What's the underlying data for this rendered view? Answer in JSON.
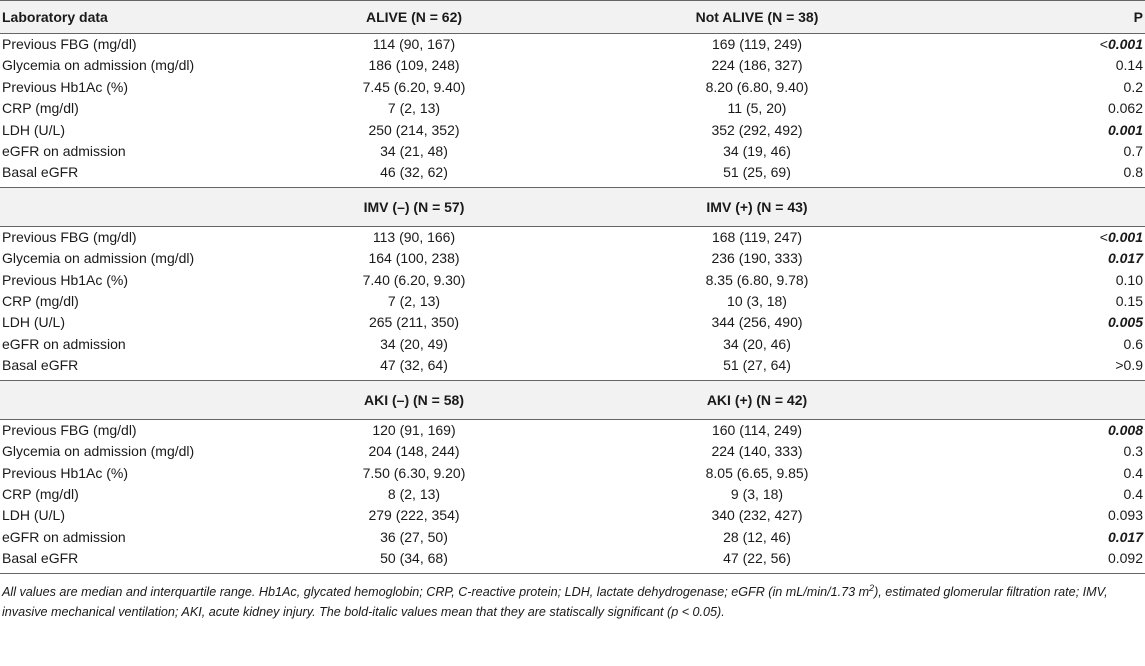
{
  "header": {
    "col1": "Laboratory data",
    "col2": "ALIVE (N = 62)",
    "col3": "Not ALIVE (N = 38)",
    "col4": "P"
  },
  "sections": [
    {
      "group": null,
      "rows": [
        {
          "label": "Previous FBG (mg/dl)",
          "a": "114 (90, 167)",
          "b": "169 (119, 249)",
          "p_prefix": "<",
          "p": "0.001",
          "sig": true
        },
        {
          "label": "Glycemia on admission (mg/dl)",
          "a": "186 (109, 248)",
          "b": "224 (186, 327)",
          "p_prefix": "",
          "p": "0.14",
          "sig": false
        },
        {
          "label": "Previous Hb1Ac (%)",
          "a": "7.45 (6.20, 9.40)",
          "b": "8.20 (6.80, 9.40)",
          "p_prefix": "",
          "p": "0.2",
          "sig": false
        },
        {
          "label": "CRP (mg/dl)",
          "a": "7 (2, 13)",
          "b": "11 (5, 20)",
          "p_prefix": "",
          "p": "0.062",
          "sig": false
        },
        {
          "label": "LDH (U/L)",
          "a": "250 (214, 352)",
          "b": "352 (292, 492)",
          "p_prefix": "",
          "p": "0.001",
          "sig": true
        },
        {
          "label": "eGFR on admission",
          "a": "34 (21, 48)",
          "b": "34 (19, 46)",
          "p_prefix": "",
          "p": "0.7",
          "sig": false
        },
        {
          "label": "Basal eGFR",
          "a": "46 (32, 62)",
          "b": "51 (25, 69)",
          "p_prefix": "",
          "p": "0.8",
          "sig": false
        }
      ]
    },
    {
      "group": {
        "a": "IMV (–) (N = 57)",
        "b": "IMV (+) (N = 43)"
      },
      "rows": [
        {
          "label": "Previous FBG (mg/dl)",
          "a": "113 (90, 166)",
          "b": "168 (119, 247)",
          "p_prefix": "<",
          "p": "0.001",
          "sig": true
        },
        {
          "label": "Glycemia on admission (mg/dl)",
          "a": "164 (100, 238)",
          "b": "236 (190, 333)",
          "p_prefix": "",
          "p": "0.017",
          "sig": true
        },
        {
          "label": "Previous Hb1Ac (%)",
          "a": "7.40 (6.20, 9.30)",
          "b": "8.35 (6.80, 9.78)",
          "p_prefix": "",
          "p": "0.10",
          "sig": false
        },
        {
          "label": "CRP (mg/dl)",
          "a": "7 (2, 13)",
          "b": "10 (3, 18)",
          "p_prefix": "",
          "p": "0.15",
          "sig": false
        },
        {
          "label": "LDH (U/L)",
          "a": "265 (211, 350)",
          "b": "344 (256, 490)",
          "p_prefix": "",
          "p": "0.005",
          "sig": true
        },
        {
          "label": "eGFR on admission",
          "a": "34 (20, 49)",
          "b": "34 (20, 46)",
          "p_prefix": "",
          "p": "0.6",
          "sig": false
        },
        {
          "label": "Basal eGFR",
          "a": "47 (32, 64)",
          "b": "51 (27, 64)",
          "p_prefix": "",
          "p": ">0.9",
          "sig": false
        }
      ]
    },
    {
      "group": {
        "a": "AKI (–) (N = 58)",
        "b": "AKI (+) (N = 42)"
      },
      "rows": [
        {
          "label": "Previous FBG (mg/dl)",
          "a": "120 (91, 169)",
          "b": "160 (114, 249)",
          "p_prefix": "",
          "p": "0.008",
          "sig": true
        },
        {
          "label": "Glycemia on admission (mg/dl)",
          "a": "204 (148, 244)",
          "b": "224 (140, 333)",
          "p_prefix": "",
          "p": "0.3",
          "sig": false
        },
        {
          "label": "Previous Hb1Ac (%)",
          "a": "7.50 (6.30, 9.20)",
          "b": "8.05 (6.65, 9.85)",
          "p_prefix": "",
          "p": "0.4",
          "sig": false
        },
        {
          "label": "CRP (mg/dl)",
          "a": "8 (2, 13)",
          "b": "9 (3, 18)",
          "p_prefix": "",
          "p": "0.4",
          "sig": false
        },
        {
          "label": "LDH (U/L)",
          "a": "279 (222, 354)",
          "b": "340 (232, 427)",
          "p_prefix": "",
          "p": "0.093",
          "sig": false
        },
        {
          "label": "eGFR on admission",
          "a": "36 (27, 50)",
          "b": "28 (12, 46)",
          "p_prefix": "",
          "p": "0.017",
          "sig": true
        },
        {
          "label": "Basal eGFR",
          "a": "50 (34, 68)",
          "b": "47 (22, 56)",
          "p_prefix": "",
          "p": "0.092",
          "sig": false
        }
      ]
    }
  ],
  "footnote": {
    "part1": "All values are median and interquartile range. Hb1Ac, glycated hemoglobin; CRP, C-reactive protein; LDH, lactate dehydrogenase; eGFR (in mL/min/1.73 m",
    "sup": "2",
    "part2": "), estimated glomerular filtration rate; IMV, invasive mechanical ventilation; AKI, acute kidney injury. The bold-italic values mean that they are statiscally significant (p < 0.05)."
  }
}
